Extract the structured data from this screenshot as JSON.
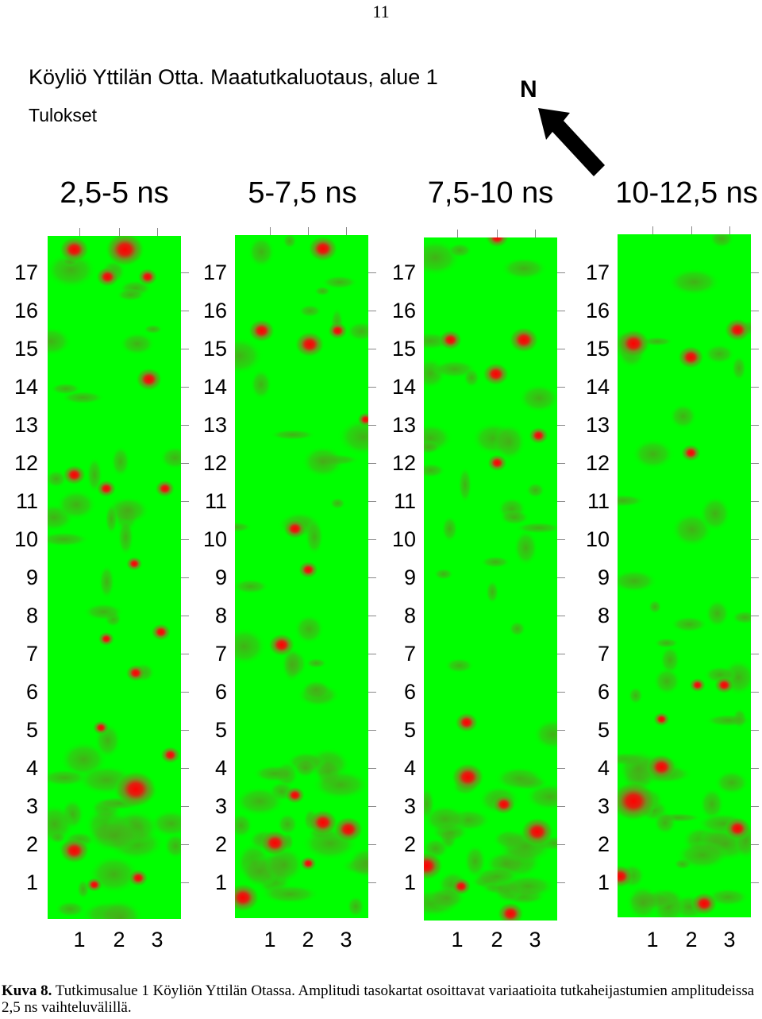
{
  "page_number": "11",
  "title": "Köyliö Yttilän Otta. Maatutkaluotaus, alue 1",
  "subtitle": "Tulokset",
  "north_label": "N",
  "north_icon": "north-arrow-icon",
  "colors": {
    "background": "#00ff00",
    "anomaly": "#ff0000",
    "mid": "#4aa81a"
  },
  "panels": [
    {
      "title": "2,5-5 ns",
      "y_ticks": [
        "17",
        "16",
        "15",
        "14",
        "13",
        "12",
        "11",
        "10",
        "9",
        "8",
        "7",
        "6",
        "5",
        "4",
        "3",
        "2",
        "1"
      ],
      "x_ticks": [
        "1",
        "2",
        "3"
      ]
    },
    {
      "title": "5-7,5 ns",
      "y_ticks": [
        "17",
        "16",
        "15",
        "14",
        "13",
        "12",
        "11",
        "10",
        "9",
        "8",
        "7",
        "6",
        "5",
        "4",
        "3",
        "2",
        "1"
      ],
      "x_ticks": [
        "1",
        "2",
        "3"
      ]
    },
    {
      "title": "7,5-10 ns",
      "y_ticks": [
        "17",
        "16",
        "15",
        "14",
        "13",
        "12",
        "11",
        "10",
        "9",
        "8",
        "7",
        "6",
        "5",
        "4",
        "3",
        "2",
        "1"
      ],
      "x_ticks": [
        "1",
        "2",
        "3"
      ]
    },
    {
      "title": "10-12,5 ns",
      "y_ticks": [
        "17",
        "16",
        "15",
        "14",
        "13",
        "12",
        "11",
        "10",
        "9",
        "8",
        "7",
        "6",
        "5",
        "4",
        "3",
        "2",
        "1"
      ],
      "x_ticks": [
        "1",
        "2",
        "3"
      ]
    }
  ],
  "caption": {
    "label": "Kuva 8.",
    "text": " Tutkimusalue 1 Köyliön Yttilän Otassa. Amplitudi tasokartat osoittavat variaatioita tutkaheijastumien amplitudeissa 2,5 ns vaihteluvälillä."
  }
}
